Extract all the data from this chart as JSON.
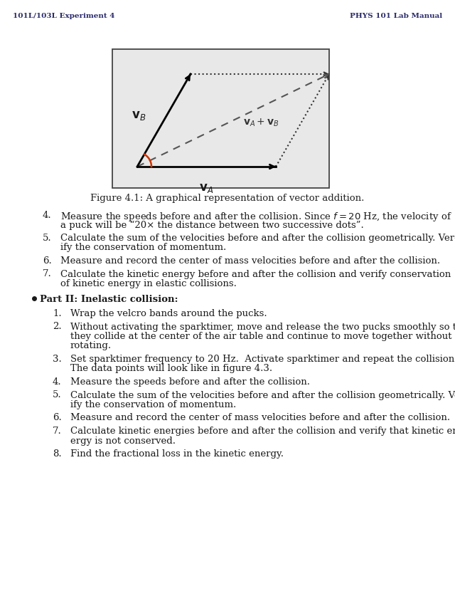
{
  "header_left": "101L/103L Experiment 4",
  "header_right": "PHYS 101 Lab Manual",
  "figure_caption": "Figure 4.1: A graphical representation of vector addition.",
  "page_bg": "#ffffff",
  "box_bg": "#e8e8e8",
  "text_color": "#1a1a1a",
  "header_color": "#2b2b6b",
  "items_part1": [
    {
      "num": "4.",
      "lines": [
        "Measure the speeds before and after the collision. Since $f = 20$ Hz, the velocity of",
        "a puck will be “20× the distance between two successive dots”."
      ]
    },
    {
      "num": "5.",
      "lines": [
        "Calculate the sum of the velocities before and after the collision geometrically. Ver-",
        "ify the conservation of momentum."
      ]
    },
    {
      "num": "6.",
      "lines": [
        "Measure and record the center of mass velocities before and after the collision."
      ]
    },
    {
      "num": "7.",
      "lines": [
        "Calculate the kinetic energy before and after the collision and verify conservation",
        "of kinetic energy in elastic collisions."
      ]
    }
  ],
  "part2_header": "Part II: Inelastic collision:",
  "items_part2": [
    {
      "num": "1.",
      "lines": [
        "Wrap the velcro bands around the pucks."
      ]
    },
    {
      "num": "2.",
      "lines": [
        "Without activating the sparktimer, move and release the two pucks smoothly so that",
        "they collide at the center of the air table and continue to move together without",
        "rotating."
      ]
    },
    {
      "num": "3.",
      "lines": [
        "Set sparktimer frequency to 20 Hz.  Activate sparktimer and repeat the collision.",
        "The data points will look like in figure 4.3."
      ]
    },
    {
      "num": "4.",
      "lines": [
        "Measure the speeds before and after the collision."
      ]
    },
    {
      "num": "5.",
      "lines": [
        "Calculate the sum of the velocities before and after the collision geometrically. Ver-",
        "ify the conservation of momentum."
      ]
    },
    {
      "num": "6.",
      "lines": [
        "Measure and record the center of mass velocities before and after the collision."
      ]
    },
    {
      "num": "7.",
      "lines": [
        "Calculate kinetic energies before and after the collision and verify that kinetic en-",
        "ergy is not conserved."
      ]
    },
    {
      "num": "8.",
      "lines": [
        "Find the fractional loss in the kinetic energy."
      ]
    }
  ]
}
